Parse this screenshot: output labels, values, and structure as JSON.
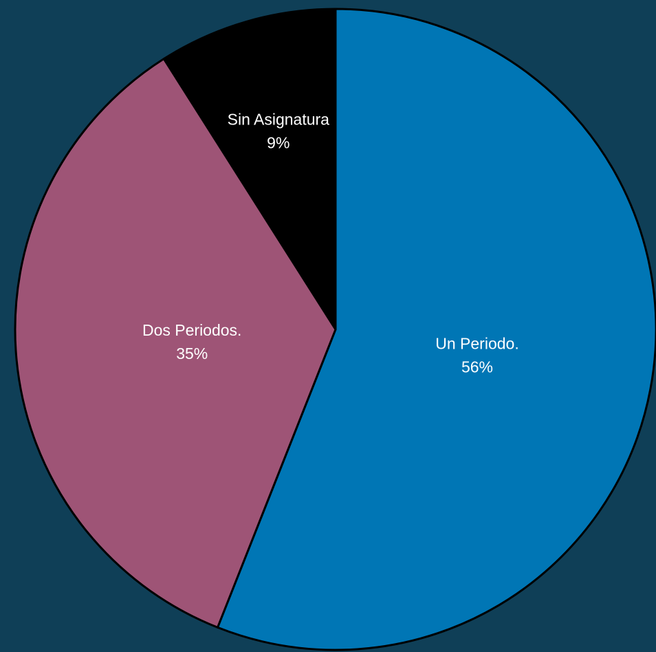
{
  "chart_data": {
    "type": "pie",
    "categories": [
      "Un Periodo.",
      "Dos Periodos.",
      "Sin Asignatura"
    ],
    "values": [
      56,
      35,
      9
    ],
    "value_labels": [
      "56%",
      "35%",
      "9%"
    ],
    "colors": [
      "#0076b5",
      "#9e5476",
      "#000000"
    ]
  }
}
